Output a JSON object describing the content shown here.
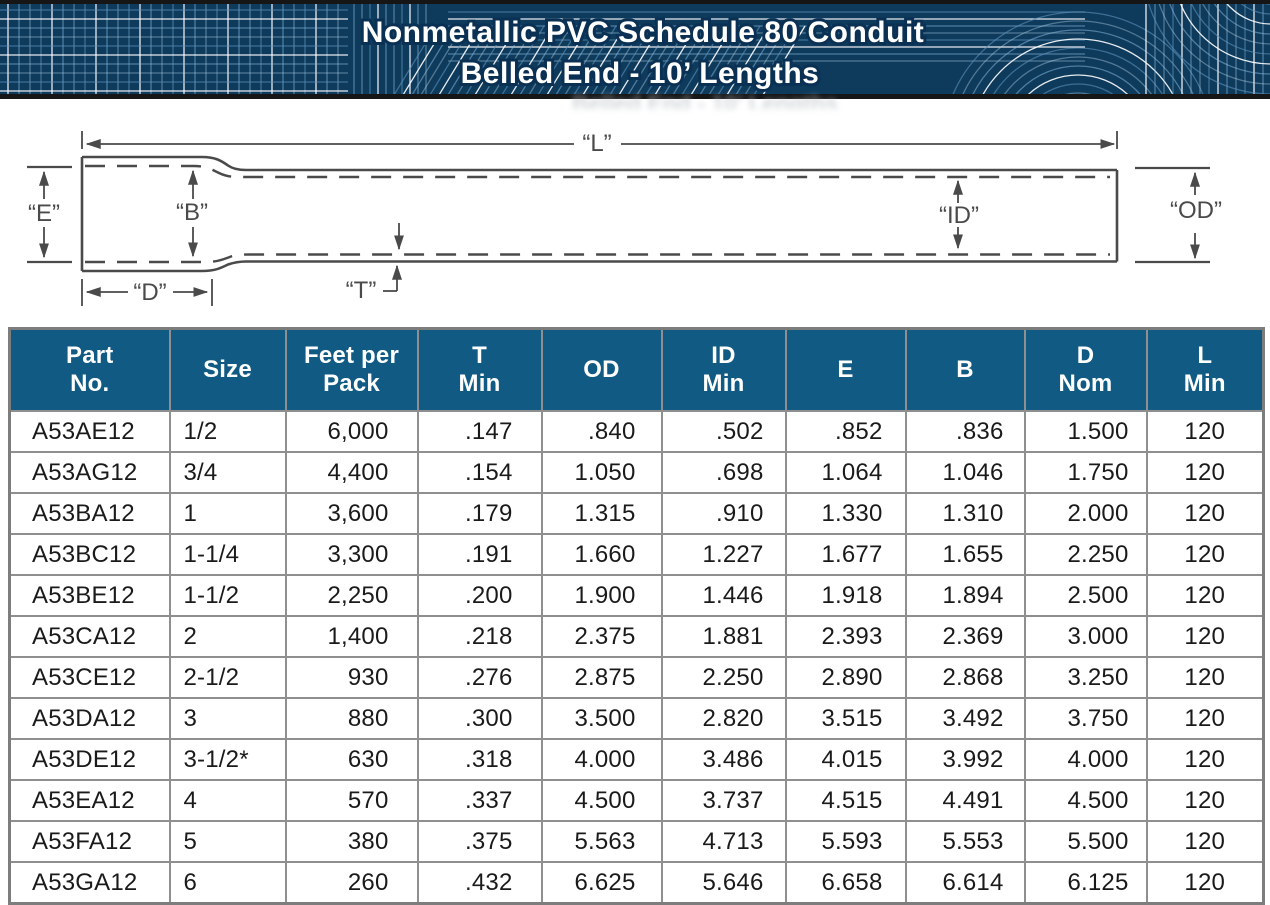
{
  "banner": {
    "title_line1": "Nonmetallic PVC Schedule 80 Conduit",
    "title_line2": "Belled End - 10’ Lengths",
    "colors": {
      "background": "#0e3a5c",
      "border": "#161616",
      "title_text": "#ffffff",
      "title_outline": "#0a3154",
      "wireframe_palette": [
        "#ffffff",
        "#8ec0e2",
        "#bcd9ec",
        "#5d93ba"
      ]
    }
  },
  "diagram": {
    "line_color": "#4a4a4a",
    "labels": {
      "length": "“L”",
      "bell_entrance": "“E”",
      "bell_socket": "“B”",
      "bell_depth": "“D”",
      "wall_thickness": "“T”",
      "inner_diameter": "“ID”",
      "outer_diameter": "“OD”"
    }
  },
  "table": {
    "colors": {
      "header_bg": "#105a83",
      "header_text": "#ffffff",
      "grid": "#8f8f8f",
      "cell_text": "#1a1a1a"
    },
    "columns": [
      {
        "line1": "Part",
        "line2": "No."
      },
      {
        "line1": "Size",
        "line2": ""
      },
      {
        "line1": "Feet per",
        "line2": "Pack"
      },
      {
        "line1": "T",
        "line2": "Min"
      },
      {
        "line1": "OD",
        "line2": ""
      },
      {
        "line1": "ID",
        "line2": "Min"
      },
      {
        "line1": "E",
        "line2": ""
      },
      {
        "line1": "B",
        "line2": ""
      },
      {
        "line1": "D",
        "line2": "Nom"
      },
      {
        "line1": "L",
        "line2": "Min"
      }
    ],
    "rows": [
      [
        "A53AE12",
        "1/2",
        "6,000",
        ".147",
        ".840",
        ".502",
        ".852",
        ".836",
        "1.500",
        "120"
      ],
      [
        "A53AG12",
        "3/4",
        "4,400",
        ".154",
        "1.050",
        ".698",
        "1.064",
        "1.046",
        "1.750",
        "120"
      ],
      [
        "A53BA12",
        "1",
        "3,600",
        ".179",
        "1.315",
        ".910",
        "1.330",
        "1.310",
        "2.000",
        "120"
      ],
      [
        "A53BC12",
        "1-1/4",
        "3,300",
        ".191",
        "1.660",
        "1.227",
        "1.677",
        "1.655",
        "2.250",
        "120"
      ],
      [
        "A53BE12",
        "1-1/2",
        "2,250",
        ".200",
        "1.900",
        "1.446",
        "1.918",
        "1.894",
        "2.500",
        "120"
      ],
      [
        "A53CA12",
        "2",
        "1,400",
        ".218",
        "2.375",
        "1.881",
        "2.393",
        "2.369",
        "3.000",
        "120"
      ],
      [
        "A53CE12",
        "2-1/2",
        "930",
        ".276",
        "2.875",
        "2.250",
        "2.890",
        "2.868",
        "3.250",
        "120"
      ],
      [
        "A53DA12",
        "3",
        "880",
        ".300",
        "3.500",
        "2.820",
        "3.515",
        "3.492",
        "3.750",
        "120"
      ],
      [
        "A53DE12",
        "3-1/2*",
        "630",
        ".318",
        "4.000",
        "3.486",
        "4.015",
        "3.992",
        "4.000",
        "120"
      ],
      [
        "A53EA12",
        "4",
        "570",
        ".337",
        "4.500",
        "3.737",
        "4.515",
        "4.491",
        "4.500",
        "120"
      ],
      [
        "A53FA12",
        "5",
        "380",
        ".375",
        "5.563",
        "4.713",
        "5.593",
        "5.553",
        "5.500",
        "120"
      ],
      [
        "A53GA12",
        "6",
        "260",
        ".432",
        "6.625",
        "5.646",
        "6.658",
        "6.614",
        "6.125",
        "120"
      ]
    ]
  }
}
